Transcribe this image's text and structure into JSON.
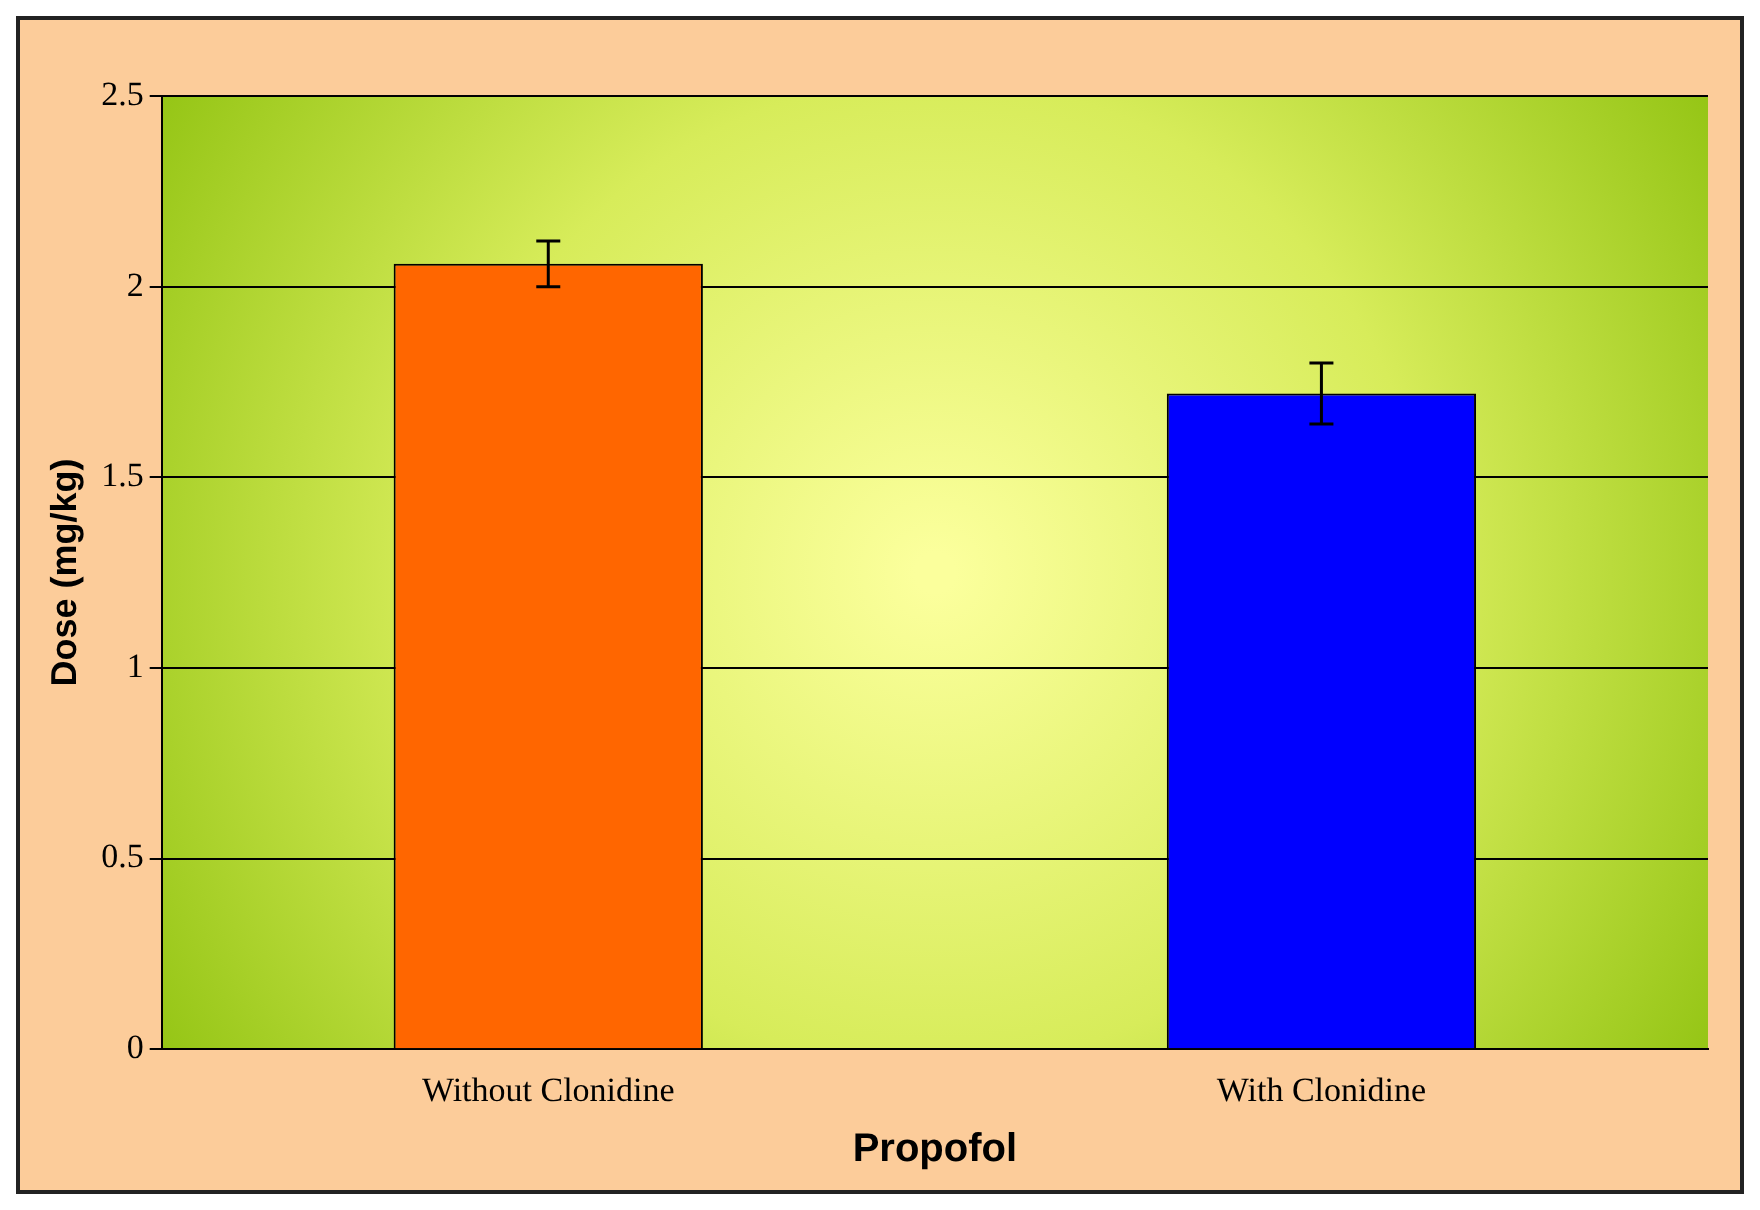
{
  "chart_data": {
    "type": "bar",
    "xlabel": "Propofol",
    "ylabel": "Dose (mg/kg)",
    "categories": [
      "Without Clonidine",
      "With Clonidine"
    ],
    "values": [
      2.06,
      1.72
    ],
    "colors": [
      "#ff6600",
      "#0000ff"
    ],
    "errors": [
      0.06,
      0.08
    ],
    "ylim": [
      0,
      2.5
    ],
    "yticks": [
      0,
      0.5,
      1,
      1.5,
      2,
      2.5
    ],
    "grid": "y",
    "legend": false
  }
}
